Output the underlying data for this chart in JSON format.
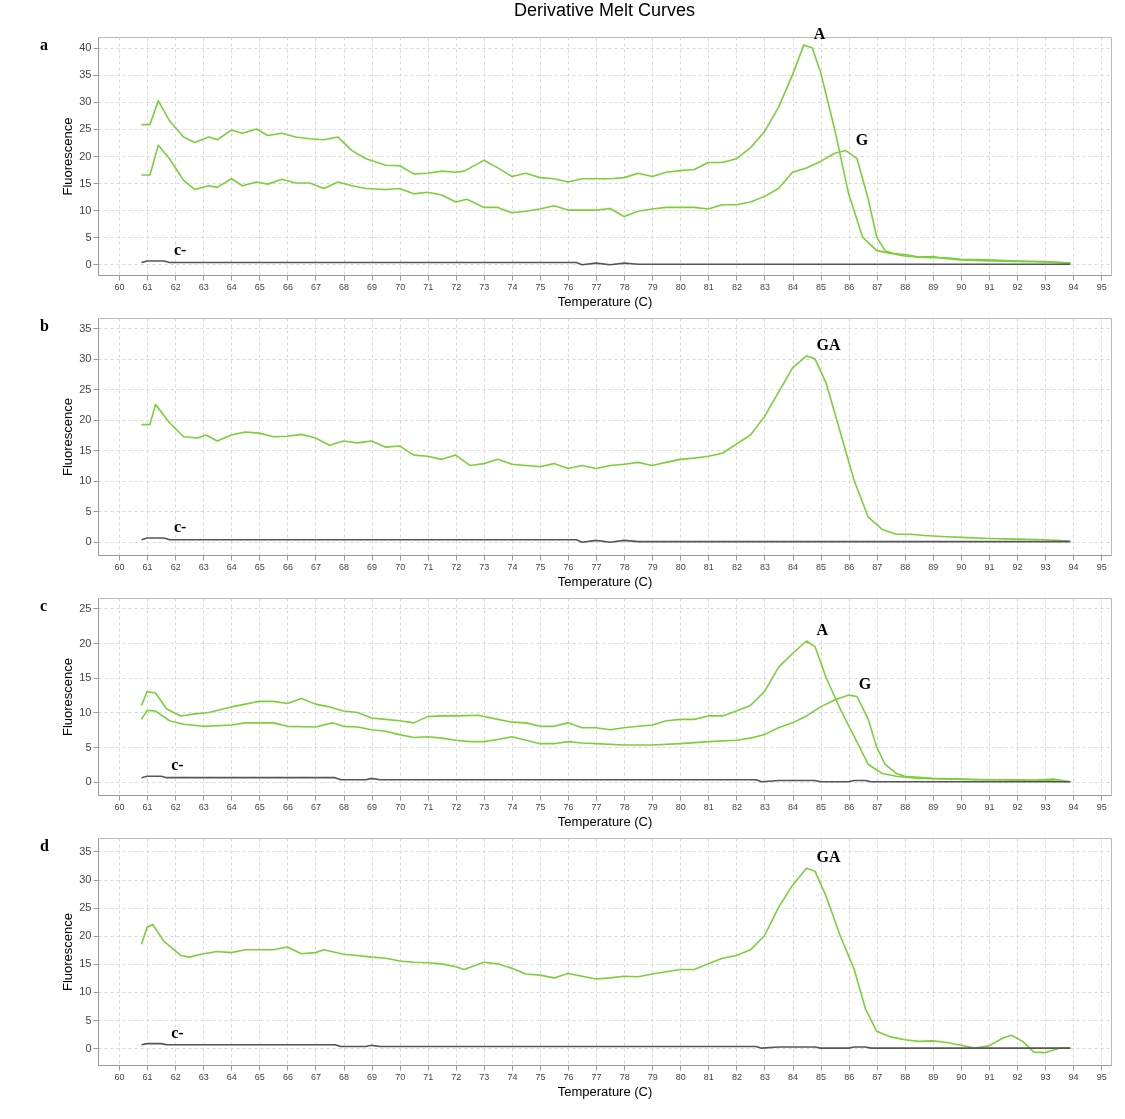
{
  "chart_data": [
    {
      "type": "line",
      "title": "Derivative Melt Curves",
      "xlabel": "Temperature (C)",
      "ylabel": "Fluorescence",
      "xlim": [
        59.25,
        95.35
      ],
      "ylim": [
        -2,
        42
      ],
      "xticks": [
        60,
        61,
        62,
        63,
        64,
        65,
        66,
        67,
        68,
        69,
        70,
        71,
        72,
        73,
        74,
        75,
        76,
        77,
        78,
        79,
        80,
        81,
        82,
        83,
        84,
        85,
        86,
        87,
        88,
        89,
        90,
        91,
        92,
        93,
        94,
        95
      ],
      "yticks": [
        0,
        5,
        10,
        15,
        20,
        25,
        30,
        35,
        40
      ],
      "grid": true,
      "annotations": [
        "a"
      ],
      "series": [
        {
          "name": "A",
          "color": "#7ccf3a",
          "x": [
            60.8,
            61.1,
            61.4,
            61.8,
            62.3,
            62.7,
            63.2,
            63.5,
            64,
            64.4,
            64.9,
            65.3,
            65.8,
            66.3,
            66.8,
            67.3,
            67.8,
            68.3,
            68.8,
            69.5,
            70,
            70.5,
            71,
            71.5,
            72,
            72.3,
            73,
            73.5,
            74,
            74.5,
            75,
            75.5,
            76,
            76.5,
            77,
            77.5,
            78,
            78.5,
            79,
            79.5,
            80,
            80.5,
            81,
            81.5,
            82,
            82.5,
            83,
            83.5,
            84,
            84.4,
            84.7,
            85,
            85.5,
            86,
            86.5,
            87,
            87.5,
            88,
            88.5,
            89,
            89.5,
            90,
            90.5,
            91,
            92,
            93,
            93.9
          ],
          "values": [
            25.8,
            25.8,
            30.2,
            26.5,
            23.5,
            22.5,
            23.5,
            23,
            24.8,
            24.2,
            25,
            23.8,
            24.2,
            23.5,
            23.2,
            23,
            23.5,
            21,
            19.5,
            18.3,
            18.2,
            16.7,
            16.8,
            17.2,
            17,
            17.2,
            19.2,
            17.8,
            16.2,
            16.8,
            16,
            15.8,
            15.2,
            15.8,
            15.8,
            15.8,
            16,
            16.8,
            16.2,
            17,
            17.3,
            17.5,
            18.8,
            18.8,
            19.5,
            21.5,
            24.5,
            29,
            35,
            40.5,
            40,
            35.5,
            25,
            13,
            5,
            2.5,
            2,
            1.8,
            1.3,
            1.4,
            1,
            0.8,
            0.7,
            0.6,
            0.5,
            0.4,
            0.2
          ]
        },
        {
          "name": "G",
          "color": "#7ccf3a",
          "x": [
            60.8,
            61.1,
            61.4,
            61.8,
            62.3,
            62.7,
            63.2,
            63.5,
            64,
            64.4,
            64.9,
            65.3,
            65.8,
            66.3,
            66.8,
            67.3,
            67.8,
            68.3,
            68.8,
            69.5,
            70,
            70.5,
            71,
            71.5,
            72,
            72.4,
            73,
            73.5,
            74,
            74.5,
            75,
            75.5,
            76,
            76.5,
            77,
            77.5,
            78,
            78.5,
            79,
            79.5,
            80,
            80.5,
            81,
            81.5,
            82,
            82.5,
            83,
            83.5,
            84,
            84.5,
            85,
            85.5,
            85.9,
            86.3,
            86.7,
            87,
            87.3,
            87.7,
            88,
            88.5,
            89,
            89.5,
            90,
            91,
            92,
            93,
            93.9
          ],
          "values": [
            16.5,
            16.5,
            22,
            19.5,
            15.5,
            13.8,
            14.5,
            14.2,
            15.8,
            14.5,
            15.2,
            14.8,
            15.7,
            15,
            15,
            14,
            15.2,
            14.5,
            14,
            13.8,
            14,
            13,
            13.3,
            12.8,
            11.5,
            12,
            10.5,
            10.5,
            9.5,
            9.8,
            10.2,
            10.8,
            10,
            10,
            10,
            10.3,
            8.8,
            9.8,
            10.2,
            10.5,
            10.5,
            10.5,
            10.2,
            11,
            11,
            11.5,
            12.5,
            14,
            17,
            17.8,
            19,
            20.5,
            21,
            19.5,
            12,
            5,
            2.5,
            1.8,
            1.5,
            1.3,
            1.2,
            1.2,
            0.9,
            0.8,
            0.6,
            0.5,
            0.2
          ]
        },
        {
          "name": "c-",
          "color": "#555555",
          "x": [
            60.8,
            61,
            61.6,
            61.8,
            76.3,
            76.5,
            77,
            77.5,
            78,
            78.5,
            93.9
          ],
          "values": [
            0.3,
            0.6,
            0.6,
            0.3,
            0.3,
            -0.1,
            0.2,
            -0.1,
            0.2,
            0,
            0
          ]
        }
      ]
    },
    {
      "type": "line",
      "xlabel": "Temperature (C)",
      "ylabel": "Fluorescence",
      "xlim": [
        59.25,
        95.35
      ],
      "ylim": [
        -2.2,
        36.7
      ],
      "xticks": [
        60,
        61,
        62,
        63,
        64,
        65,
        66,
        67,
        68,
        69,
        70,
        71,
        72,
        73,
        74,
        75,
        76,
        77,
        78,
        79,
        80,
        81,
        82,
        83,
        84,
        85,
        86,
        87,
        88,
        89,
        90,
        91,
        92,
        93,
        94,
        95
      ],
      "yticks": [
        0,
        5,
        10,
        15,
        20,
        25,
        30,
        35
      ],
      "grid": true,
      "annotations": [
        "b"
      ],
      "series": [
        {
          "name": "GA",
          "color": "#7ccf3a",
          "x": [
            60.8,
            61.1,
            61.3,
            61.8,
            62.3,
            62.8,
            63.1,
            63.5,
            64,
            64.5,
            65,
            65.5,
            66,
            66.5,
            67,
            67.5,
            68,
            68.5,
            69,
            69.5,
            70,
            70.5,
            71,
            71.5,
            72,
            72.5,
            73,
            73.5,
            74,
            74.5,
            75,
            75.5,
            76,
            76.5,
            77,
            77.5,
            78,
            78.5,
            79,
            79.5,
            80,
            80.5,
            81,
            81.5,
            82,
            82.5,
            83,
            83.5,
            84,
            84.5,
            84.8,
            85.2,
            85.7,
            86.2,
            86.7,
            87.2,
            87.7,
            88.2,
            88.7,
            89.5,
            90,
            91,
            92,
            93,
            93.9
          ],
          "values": [
            19.2,
            19.2,
            22.5,
            19.5,
            17.2,
            17,
            17.5,
            16.5,
            17.5,
            18,
            17.8,
            17.2,
            17.3,
            17.6,
            17,
            15.8,
            16.5,
            16.2,
            16.5,
            15.5,
            15.7,
            14.2,
            14,
            13.5,
            14.2,
            12.5,
            12.8,
            13.5,
            12.7,
            12.5,
            12.3,
            12.8,
            12,
            12.5,
            12,
            12.5,
            12.7,
            13,
            12.5,
            13,
            13.5,
            13.7,
            14,
            14.5,
            16,
            17.5,
            20.5,
            24.5,
            28.5,
            30.5,
            30,
            26,
            18,
            10,
            4,
            2,
            1.2,
            1.2,
            1,
            0.8,
            0.7,
            0.5,
            0.4,
            0.3,
            0.1
          ]
        },
        {
          "name": "c-",
          "color": "#555555",
          "x": [
            60.8,
            61,
            61.6,
            61.8,
            76.3,
            76.5,
            77,
            77.5,
            78,
            78.5,
            93.9
          ],
          "values": [
            0.3,
            0.6,
            0.6,
            0.3,
            0.3,
            -0.1,
            0.2,
            -0.1,
            0.2,
            0,
            0
          ]
        }
      ]
    },
    {
      "type": "line",
      "xlabel": "Temperature (C)",
      "ylabel": "Fluorescence",
      "xlim": [
        59.25,
        95.35
      ],
      "ylim": [
        -1.9,
        26.5
      ],
      "xticks": [
        60,
        61,
        62,
        63,
        64,
        65,
        66,
        67,
        68,
        69,
        70,
        71,
        72,
        73,
        74,
        75,
        76,
        77,
        78,
        79,
        80,
        81,
        82,
        83,
        84,
        85,
        86,
        87,
        88,
        89,
        90,
        91,
        92,
        93,
        94,
        95
      ],
      "yticks": [
        0,
        5,
        10,
        15,
        20,
        25
      ],
      "grid": true,
      "annotations": [
        "c"
      ],
      "series": [
        {
          "name": "A",
          "color": "#7ccf3a",
          "x": [
            60.8,
            61,
            61.3,
            61.7,
            62.2,
            62.7,
            63.2,
            64,
            64.5,
            65,
            65.5,
            66,
            66.5,
            67,
            67.5,
            68,
            68.5,
            69,
            69.5,
            70,
            70.5,
            71,
            71.5,
            72,
            72.8,
            73.5,
            74,
            74.5,
            75,
            75.5,
            76,
            76.5,
            77,
            77.5,
            78,
            78.5,
            79,
            79.5,
            80,
            80.5,
            81,
            81.5,
            82,
            82.5,
            83,
            83.5,
            84,
            84.5,
            84.8,
            85.2,
            85.7,
            86.2,
            86.7,
            87.2,
            87.7,
            88.5,
            89.5,
            90.5,
            91.5,
            92.5,
            93.3,
            93.9
          ],
          "values": [
            11,
            13,
            12.8,
            10.5,
            9.5,
            9.8,
            10,
            10.8,
            11.2,
            11.6,
            11.6,
            11.3,
            12,
            11.2,
            10.8,
            10.2,
            10,
            9.2,
            9,
            8.8,
            8.5,
            9.4,
            9.5,
            9.5,
            9.6,
            9,
            8.6,
            8.5,
            8,
            8,
            8.5,
            7.8,
            7.8,
            7.5,
            7.8,
            8,
            8.2,
            8.8,
            9,
            9,
            9.5,
            9.5,
            10.2,
            11,
            13,
            16.5,
            18.5,
            20.3,
            19.5,
            15,
            10.5,
            6.5,
            2.5,
            1.2,
            0.8,
            0.5,
            0.4,
            0.3,
            0.3,
            0.2,
            0.4,
            0
          ]
        },
        {
          "name": "G",
          "color": "#7ccf3a",
          "x": [
            60.8,
            61,
            61.3,
            61.8,
            62.3,
            63,
            64,
            64.5,
            65.5,
            66,
            67,
            67.6,
            68,
            68.5,
            69,
            69.5,
            70,
            70.5,
            71,
            71.5,
            72,
            72.5,
            73,
            73.5,
            74,
            74.5,
            75,
            75.5,
            76,
            76.5,
            77,
            78,
            79,
            80,
            81,
            82,
            82.5,
            83,
            83.5,
            84,
            84.5,
            85,
            85.5,
            86,
            86.3,
            86.7,
            87,
            87.3,
            87.7,
            88,
            89,
            90,
            91,
            92,
            93,
            93.9
          ],
          "values": [
            9,
            10.3,
            10.2,
            8.8,
            8.3,
            8,
            8.2,
            8.5,
            8.5,
            8,
            7.9,
            8.5,
            8,
            7.9,
            7.5,
            7.3,
            6.8,
            6.4,
            6.5,
            6.3,
            6,
            5.8,
            5.8,
            6.1,
            6.5,
            6,
            5.5,
            5.5,
            5.8,
            5.6,
            5.5,
            5.3,
            5.3,
            5.5,
            5.8,
            6,
            6.3,
            6.8,
            7.8,
            8.5,
            9.5,
            10.8,
            11.8,
            12.5,
            12.3,
            9,
            5,
            2.5,
            1.2,
            0.8,
            0.5,
            0.4,
            0.3,
            0.3,
            0.2,
            0
          ]
        },
        {
          "name": "c-",
          "color": "#555555",
          "x": [
            60.8,
            61,
            61.5,
            61.7,
            67.7,
            67.9,
            68.8,
            69,
            69.3,
            82.7,
            82.9,
            83.5,
            84.8,
            85,
            86,
            86.2,
            86.6,
            86.8,
            93.9
          ],
          "values": [
            0.6,
            0.8,
            0.8,
            0.6,
            0.6,
            0.3,
            0.3,
            0.5,
            0.3,
            0.3,
            0,
            0.2,
            0.2,
            0,
            0,
            0.2,
            0.2,
            0,
            0
          ]
        }
      ]
    },
    {
      "type": "line",
      "xlabel": "Temperature (C)",
      "ylabel": "Fluorescence",
      "xlim": [
        59.25,
        95.35
      ],
      "ylim": [
        -3,
        37.4
      ],
      "xticks": [
        60,
        61,
        62,
        63,
        64,
        65,
        66,
        67,
        68,
        69,
        70,
        71,
        72,
        73,
        74,
        75,
        76,
        77,
        78,
        79,
        80,
        81,
        82,
        83,
        84,
        85,
        86,
        87,
        88,
        89,
        90,
        91,
        92,
        93,
        94,
        95
      ],
      "yticks": [
        0,
        5,
        10,
        15,
        20,
        25,
        30,
        35
      ],
      "grid": true,
      "annotations": [
        "d"
      ],
      "series": [
        {
          "name": "GA",
          "color": "#7ccf3a",
          "x": [
            60.8,
            61,
            61.2,
            61.6,
            62.2,
            62.5,
            63,
            63.5,
            64,
            64.5,
            65,
            65.5,
            66,
            66.5,
            67,
            67.3,
            68,
            68.5,
            69,
            69.5,
            70,
            70.5,
            71,
            71.5,
            72,
            72.3,
            73,
            73.5,
            74,
            74.5,
            75,
            75.5,
            76,
            76.5,
            77,
            77.5,
            78,
            78.5,
            79,
            79.5,
            80,
            80.5,
            81,
            81.5,
            82,
            82.5,
            83,
            83.5,
            84,
            84.5,
            84.8,
            85.2,
            85.7,
            86.2,
            86.6,
            87,
            87.5,
            88,
            88.5,
            89,
            89.5,
            90,
            90.5,
            91,
            91.5,
            91.8,
            92.2,
            92.6,
            93,
            93.5,
            93.9
          ],
          "values": [
            18.5,
            21.5,
            22,
            19,
            16.5,
            16.2,
            16.8,
            17.2,
            17,
            17.5,
            17.5,
            17.5,
            18,
            16.8,
            17,
            17.5,
            16.7,
            16.5,
            16.2,
            16,
            15.5,
            15.3,
            15.2,
            15,
            14.5,
            14,
            15.3,
            15,
            14.2,
            13.2,
            13,
            12.5,
            13.3,
            12.8,
            12.3,
            12.5,
            12.8,
            12.7,
            13.2,
            13.6,
            14,
            14,
            15,
            16,
            16.5,
            17.5,
            20,
            25,
            29,
            32,
            31.5,
            27,
            20,
            14,
            7,
            3,
            2,
            1.5,
            1.2,
            1.3,
            1,
            0.5,
            0,
            0.4,
            1.8,
            2.3,
            1.2,
            -0.7,
            -0.8,
            0,
            0
          ]
        },
        {
          "name": "c-",
          "color": "#555555",
          "x": [
            60.8,
            61,
            61.5,
            61.7,
            67.7,
            67.9,
            68.8,
            69,
            69.3,
            82.7,
            82.9,
            83.5,
            84.8,
            85,
            86,
            86.2,
            86.6,
            86.8,
            93.9
          ],
          "values": [
            0.6,
            0.8,
            0.8,
            0.6,
            0.6,
            0.3,
            0.3,
            0.5,
            0.3,
            0.3,
            0,
            0.2,
            0.2,
            0,
            0,
            0.2,
            0.2,
            0,
            0
          ]
        }
      ]
    }
  ]
}
